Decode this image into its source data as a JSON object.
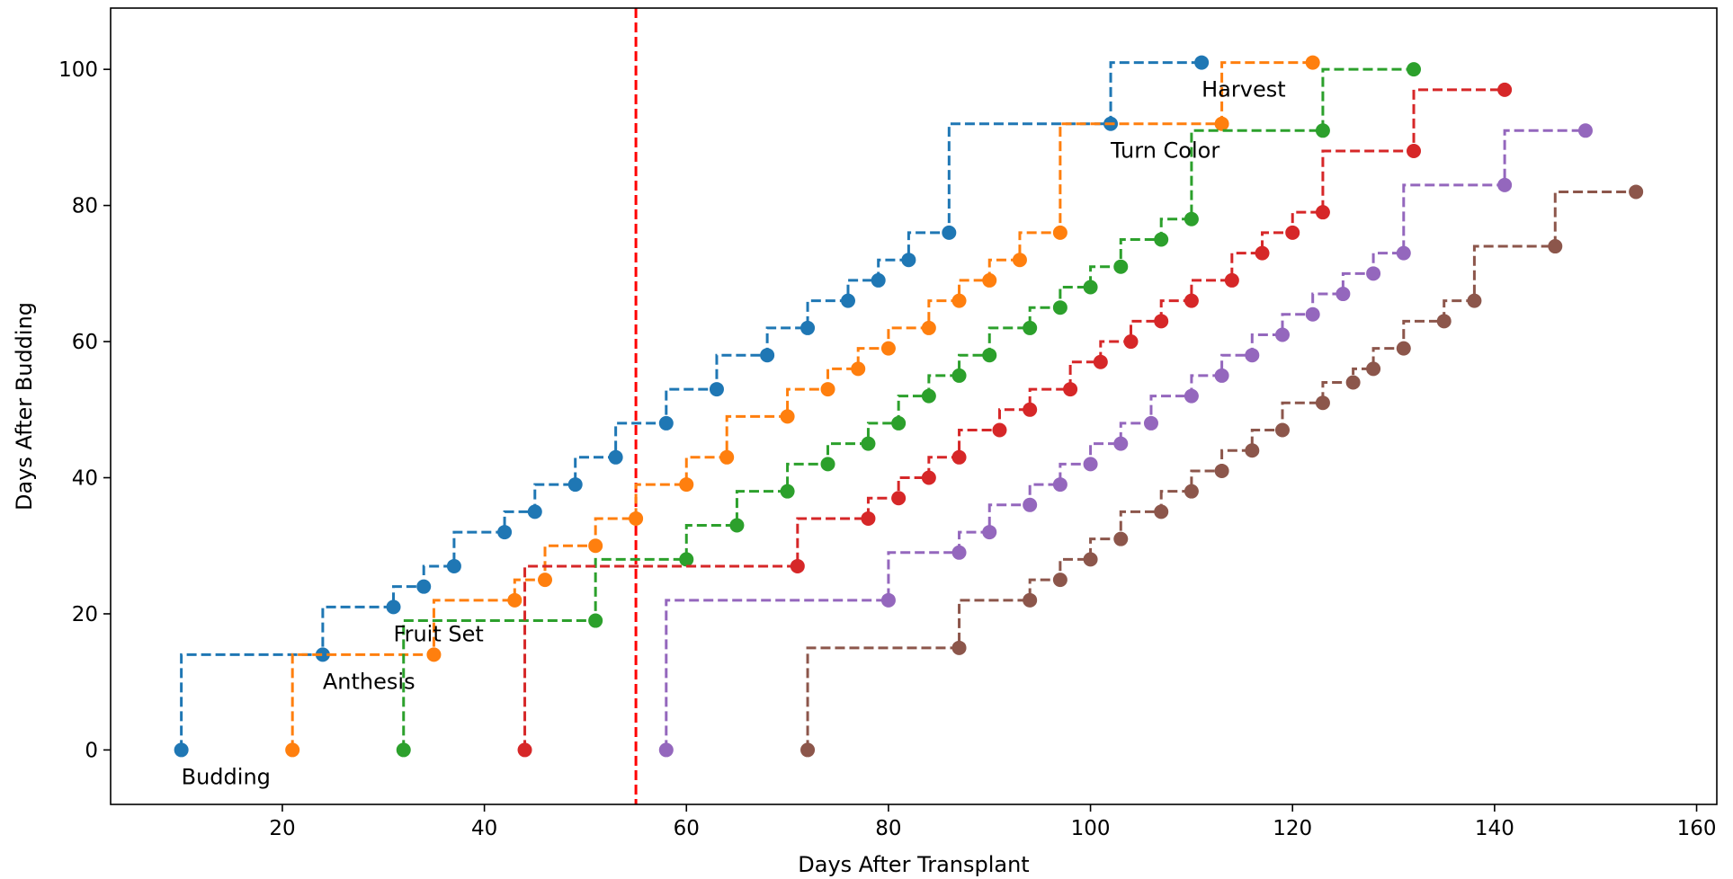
{
  "chart_data": {
    "type": "line",
    "step": "post",
    "title": "",
    "xlabel": "Days After Transplant",
    "ylabel": "Days After Budding",
    "xlim": [
      3,
      162
    ],
    "ylim": [
      -8,
      109
    ],
    "xticks": [
      20,
      40,
      60,
      80,
      100,
      120,
      140,
      160
    ],
    "yticks": [
      0,
      20,
      40,
      60,
      80,
      100
    ],
    "grid": false,
    "legend": "none",
    "vline": {
      "x": 55,
      "color": "#ff0000",
      "style": "dashed"
    },
    "series": [
      {
        "color": "#1f77b4",
        "x": [
          10,
          24,
          31,
          34,
          37,
          42,
          45,
          49,
          53,
          58,
          63,
          68,
          72,
          76,
          79,
          82,
          86,
          102,
          111
        ],
        "y": [
          0,
          14,
          21,
          24,
          27,
          32,
          35,
          39,
          43,
          48,
          53,
          58,
          62,
          66,
          69,
          72,
          76,
          92,
          101
        ]
      },
      {
        "color": "#ff7f0e",
        "x": [
          21,
          35,
          43,
          46,
          51,
          55,
          60,
          64,
          70,
          74,
          77,
          80,
          84,
          87,
          90,
          93,
          97,
          113,
          122
        ],
        "y": [
          0,
          14,
          22,
          25,
          30,
          34,
          39,
          43,
          49,
          53,
          56,
          59,
          62,
          66,
          69,
          72,
          76,
          92,
          101
        ]
      },
      {
        "color": "#2ca02c",
        "x": [
          32,
          51,
          60,
          65,
          70,
          74,
          78,
          81,
          84,
          87,
          90,
          94,
          97,
          100,
          103,
          107,
          110,
          123,
          132
        ],
        "y": [
          0,
          19,
          28,
          33,
          38,
          42,
          45,
          48,
          52,
          55,
          58,
          62,
          65,
          68,
          71,
          75,
          78,
          91,
          100
        ]
      },
      {
        "color": "#d62728",
        "x": [
          44,
          71,
          78,
          81,
          84,
          87,
          91,
          94,
          98,
          101,
          104,
          107,
          110,
          114,
          117,
          120,
          123,
          132,
          141
        ],
        "y": [
          0,
          27,
          34,
          37,
          40,
          43,
          47,
          50,
          53,
          57,
          60,
          63,
          66,
          69,
          73,
          76,
          79,
          88,
          97
        ]
      },
      {
        "color": "#9467bd",
        "x": [
          58,
          80,
          87,
          90,
          94,
          97,
          100,
          103,
          106,
          110,
          113,
          116,
          119,
          122,
          125,
          128,
          131,
          141,
          149
        ],
        "y": [
          0,
          22,
          29,
          32,
          36,
          39,
          42,
          45,
          48,
          52,
          55,
          58,
          61,
          64,
          67,
          70,
          73,
          83,
          91
        ]
      },
      {
        "color": "#8c564b",
        "x": [
          72,
          87,
          94,
          97,
          100,
          103,
          107,
          110,
          113,
          116,
          119,
          123,
          126,
          128,
          131,
          135,
          138,
          146,
          154
        ],
        "y": [
          0,
          15,
          22,
          25,
          28,
          31,
          35,
          38,
          41,
          44,
          47,
          51,
          54,
          56,
          59,
          63,
          66,
          74,
          82
        ]
      }
    ],
    "annotations": [
      {
        "text": "Budding",
        "x": 10,
        "y": 0
      },
      {
        "text": "Anthesis",
        "x": 24,
        "y": 14
      },
      {
        "text": "Fruit Set",
        "x": 31,
        "y": 21
      },
      {
        "text": "Turn Color",
        "x": 102,
        "y": 92
      },
      {
        "text": "Harvest",
        "x": 111,
        "y": 101
      }
    ]
  }
}
